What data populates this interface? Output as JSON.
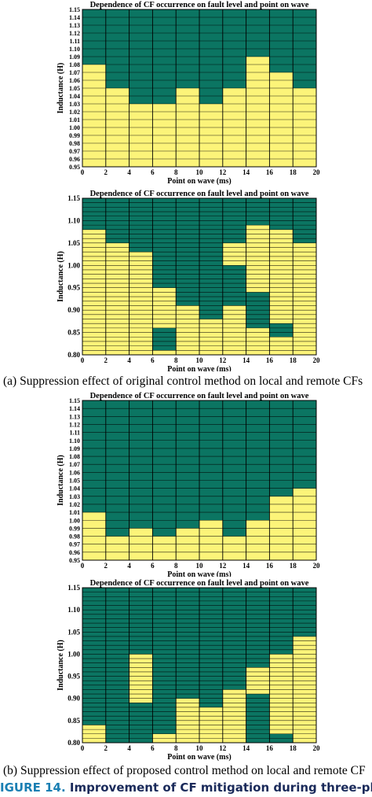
{
  "colors": {
    "stable": "#fcf479",
    "cf": "#0b7562",
    "border": "#000000"
  },
  "captions": {
    "a": "(a) Suppression effect of original control method on local and remote CFs",
    "b": "(b) Suppression effect of proposed control method on local and remote CF"
  },
  "figure_caption": {
    "label": "IGURE 14.",
    "text": "Improvement of CF mitigation during three-phase faults for"
  },
  "chart_data": [
    {
      "type": "heatmap",
      "title": "Dependence of CF occurrence on fault level and point on wave",
      "xlabel": "Point on wave (ms)",
      "ylabel": "Inductance (H)",
      "xlim": [
        0,
        20
      ],
      "ylim": [
        0.95,
        1.15
      ],
      "xticks": [
        "0",
        "2",
        "4",
        "6",
        "8",
        "10",
        "12",
        "14",
        "16",
        "18",
        "20"
      ],
      "yticks": [
        "0.95",
        "0.96",
        "0.97",
        "0.98",
        "0.99",
        "1.00",
        "1.01",
        "1.02",
        "1.03",
        "1.04",
        "1.05",
        "1.06",
        "1.07",
        "1.08",
        "1.09",
        "1.10",
        "1.11",
        "1.12",
        "1.13",
        "1.14",
        "1.15"
      ],
      "grid": true,
      "columns": [
        {
          "x": [
            0,
            2
          ],
          "top": 1.08
        },
        {
          "x": [
            2,
            4
          ],
          "top": 1.05
        },
        {
          "x": [
            4,
            6
          ],
          "top": 1.03
        },
        {
          "x": [
            6,
            8
          ],
          "top": 1.03
        },
        {
          "x": [
            8,
            10
          ],
          "top": 1.05
        },
        {
          "x": [
            10,
            12
          ],
          "top": 1.03
        },
        {
          "x": [
            12,
            14
          ],
          "top": 1.05
        },
        {
          "x": [
            14,
            16
          ],
          "top": 1.09
        },
        {
          "x": [
            16,
            18
          ],
          "top": 1.07
        },
        {
          "x": [
            18,
            20
          ],
          "top": 1.05
        }
      ]
    },
    {
      "type": "heatmap",
      "title": "Dependence of CF occurrence on fault level and point on wave",
      "xlabel": "Point on wave (ms)",
      "ylabel": "Inductance (H)",
      "xlim": [
        0,
        20
      ],
      "ylim": [
        0.8,
        1.15
      ],
      "xticks": [
        "0",
        "2",
        "4",
        "6",
        "8",
        "10",
        "12",
        "14",
        "16",
        "18",
        "20"
      ],
      "yticks": [
        "0.80",
        "0.85",
        "0.90",
        "0.95",
        "1.00",
        "1.05",
        "1.10",
        "1.15"
      ],
      "grid": true,
      "columns": [
        {
          "x": [
            0,
            2
          ],
          "top": 1.08
        },
        {
          "x": [
            2,
            4
          ],
          "top": 1.05
        },
        {
          "x": [
            4,
            6
          ],
          "top": 1.03
        },
        {
          "x": [
            6,
            8
          ],
          "top": 0.95,
          "cf_ranges": [
            [
              0.81,
              0.86
            ]
          ]
        },
        {
          "x": [
            8,
            10
          ],
          "top": 0.91
        },
        {
          "x": [
            10,
            12
          ],
          "top": 0.88
        },
        {
          "x": [
            12,
            14
          ],
          "top": 1.05,
          "cf_ranges": [
            [
              0.91,
              1.0
            ]
          ]
        },
        {
          "x": [
            14,
            16
          ],
          "top": 1.09,
          "cf_ranges": [
            [
              0.86,
              0.94
            ]
          ]
        },
        {
          "x": [
            16,
            18
          ],
          "top": 1.08,
          "cf_ranges": [
            [
              0.84,
              0.87
            ]
          ]
        },
        {
          "x": [
            18,
            20
          ],
          "top": 1.05
        }
      ]
    },
    {
      "type": "heatmap",
      "title": "Dependence of CF occurrence on fault level and point on wave",
      "xlabel": "Point on wave (ms)",
      "ylabel": "Inductance (H)",
      "xlim": [
        0,
        20
      ],
      "ylim": [
        0.95,
        1.15
      ],
      "xticks": [
        "0",
        "2",
        "4",
        "6",
        "8",
        "10",
        "12",
        "14",
        "16",
        "18",
        "20"
      ],
      "yticks": [
        "0.95",
        "0.96",
        "0.97",
        "0.98",
        "0.99",
        "1.00",
        "1.01",
        "1.02",
        "1.03",
        "1.04",
        "1.05",
        "1.06",
        "1.07",
        "1.08",
        "1.09",
        "1.10",
        "1.11",
        "1.12",
        "1.13",
        "1.14",
        "1.15"
      ],
      "grid": true,
      "columns": [
        {
          "x": [
            0,
            2
          ],
          "top": 1.01
        },
        {
          "x": [
            2,
            4
          ],
          "top": 0.98
        },
        {
          "x": [
            4,
            6
          ],
          "top": 0.99
        },
        {
          "x": [
            6,
            8
          ],
          "top": 0.98
        },
        {
          "x": [
            8,
            10
          ],
          "top": 0.99
        },
        {
          "x": [
            10,
            12
          ],
          "top": 1.0
        },
        {
          "x": [
            12,
            14
          ],
          "top": 0.98
        },
        {
          "x": [
            14,
            16
          ],
          "top": 1.0
        },
        {
          "x": [
            16,
            18
          ],
          "top": 1.03
        },
        {
          "x": [
            18,
            20
          ],
          "top": 1.04
        }
      ]
    },
    {
      "type": "heatmap",
      "title": "Dependence of CF occurrence on fault level and point on wave",
      "xlabel": "Point on wave (ms)",
      "ylabel": "Inductance (H)",
      "xlim": [
        0,
        20
      ],
      "ylim": [
        0.8,
        1.15
      ],
      "xticks": [
        "0",
        "2",
        "4",
        "6",
        "8",
        "10",
        "12",
        "14",
        "16",
        "18",
        "20"
      ],
      "yticks": [
        "0.80",
        "0.85",
        "0.90",
        "0.95",
        "1.00",
        "1.05",
        "1.10",
        "1.15"
      ],
      "grid": true,
      "columns": [
        {
          "x": [
            0,
            2
          ],
          "top": 0.84
        },
        {
          "x": [
            2,
            4
          ],
          "top": 0.8
        },
        {
          "x": [
            4,
            6
          ],
          "top": 1.0,
          "cf_ranges": [
            [
              0.8,
              0.89
            ]
          ]
        },
        {
          "x": [
            6,
            8
          ],
          "top": 0.93,
          "cf_ranges": [
            [
              0.82,
              1.15
            ]
          ]
        },
        {
          "x": [
            8,
            10
          ],
          "top": 0.9
        },
        {
          "x": [
            10,
            12
          ],
          "top": 0.88
        },
        {
          "x": [
            12,
            14
          ],
          "top": 0.92
        },
        {
          "x": [
            14,
            16
          ],
          "top": 0.97,
          "cf_ranges": [
            [
              0.8,
              0.91
            ]
          ]
        },
        {
          "x": [
            16,
            18
          ],
          "top": 1.0,
          "cf_ranges": [
            [
              0.8,
              0.82
            ]
          ]
        },
        {
          "x": [
            18,
            20
          ],
          "top": 1.04
        }
      ]
    }
  ]
}
